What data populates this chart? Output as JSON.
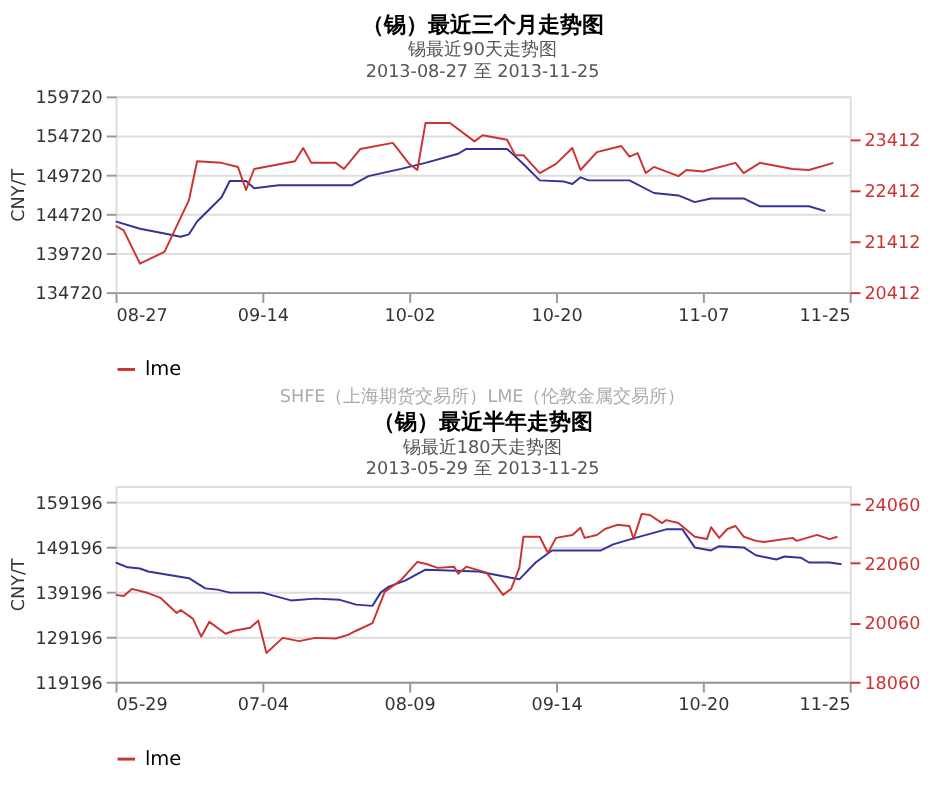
{
  "chart_data": [
    {
      "type": "line",
      "title": "（锡）最近三个月走势图",
      "subtitle": "锡最近90天走势图\n2013-08-27 至 2013-11-25",
      "ylabel": "CNY/T",
      "legend": "bottom",
      "grid": "y",
      "annotations": [
        "SHFE（上海期货交易所）LME（伦敦金属交易所）"
      ],
      "xlim": [
        "2013-08-27",
        "2013-11-25"
      ],
      "xticks": [
        {
          "value": "2013-08-27",
          "label": "08-27"
        },
        {
          "value": "2013-09-14",
          "label": "09-14"
        },
        {
          "value": "2013-10-02",
          "label": "10-02"
        },
        {
          "value": "2013-10-20",
          "label": "10-20"
        },
        {
          "value": "2013-11-07",
          "label": "11-07"
        },
        {
          "value": "2013-11-25",
          "label": "11-25"
        }
      ],
      "ylim": [
        134720,
        159720
      ],
      "yticks": [
        134720,
        139720,
        144720,
        149720,
        154720,
        159720
      ],
      "y2lim": [
        20412,
        24240
      ],
      "y2ticks": [
        20412,
        21412,
        22412,
        23412
      ],
      "series": [
        {
          "color": "#333399",
          "x": [
            "2013-08-27",
            "2013-08-30",
            "2013-09-02",
            "2013-09-04",
            "2013-09-05",
            "2013-09-06",
            "2013-09-09",
            "2013-09-10",
            "2013-09-12",
            "2013-09-13",
            "2013-09-16",
            "2013-09-25",
            "2013-09-27",
            "2013-10-01",
            "2013-10-04",
            "2013-10-08",
            "2013-10-09",
            "2013-10-14",
            "2013-10-16",
            "2013-10-18",
            "2013-10-21",
            "2013-10-22",
            "2013-10-23",
            "2013-10-24",
            "2013-10-29",
            "2013-11-01",
            "2013-11-04",
            "2013-11-06",
            "2013-11-08",
            "2013-11-12",
            "2013-11-14",
            "2013-11-20",
            "2013-11-22"
          ],
          "values": [
            143750,
            142820,
            142200,
            141800,
            142100,
            143750,
            146830,
            148920,
            148920,
            147990,
            148380,
            148380,
            149540,
            150460,
            151230,
            152390,
            153010,
            153010,
            151080,
            148990,
            148840,
            148530,
            149380,
            148990,
            148990,
            147380,
            147070,
            146220,
            146680,
            146680,
            145680,
            145680,
            145060
          ]
        },
        {
          "name": "lme",
          "color": "#cc3333",
          "axis": "y2",
          "x": [
            "2013-08-27",
            "2013-08-28",
            "2013-08-30",
            "2013-09-02",
            "2013-09-05",
            "2013-09-06",
            "2013-09-09",
            "2013-09-11",
            "2013-09-12",
            "2013-09-13",
            "2013-09-18",
            "2013-09-19",
            "2013-09-20",
            "2013-09-23",
            "2013-09-24",
            "2013-09-26",
            "2013-09-30",
            "2013-10-02",
            "2013-10-03",
            "2013-10-04",
            "2013-10-07",
            "2013-10-10",
            "2013-10-11",
            "2013-10-14",
            "2013-10-15",
            "2013-10-16",
            "2013-10-18",
            "2013-10-20",
            "2013-10-22",
            "2013-10-23",
            "2013-10-25",
            "2013-10-28",
            "2013-10-29",
            "2013-10-30",
            "2013-10-31",
            "2013-11-01",
            "2013-11-04",
            "2013-11-05",
            "2013-11-07",
            "2013-11-11",
            "2013-11-12",
            "2013-11-14",
            "2013-11-18",
            "2013-11-20",
            "2013-11-23"
          ],
          "values": [
            21710,
            21620,
            20970,
            21200,
            22210,
            22970,
            22940,
            22860,
            22410,
            22820,
            22970,
            23230,
            22940,
            22940,
            22820,
            23210,
            23330,
            22920,
            22800,
            23720,
            23720,
            23360,
            23480,
            23390,
            23090,
            23090,
            22740,
            22920,
            23230,
            22800,
            23150,
            23270,
            23060,
            23130,
            22740,
            22860,
            22680,
            22800,
            22770,
            22940,
            22740,
            22940,
            22820,
            22800,
            22940
          ]
        }
      ]
    },
    {
      "type": "line",
      "title": "（锡）最近半年走势图",
      "subtitle": "锡最近180天走势图\n2013-05-29 至 2013-11-25",
      "ylabel": "CNY/T",
      "legend": "bottom",
      "grid": "y",
      "xlim": [
        "2013-05-29",
        "2013-11-25"
      ],
      "xticks": [
        {
          "value": "2013-05-29",
          "label": "05-29"
        },
        {
          "value": "2013-07-04",
          "label": "07-04"
        },
        {
          "value": "2013-08-09",
          "label": "08-09"
        },
        {
          "value": "2013-09-14",
          "label": "09-14"
        },
        {
          "value": "2013-10-20",
          "label": "10-20"
        },
        {
          "value": "2013-11-25",
          "label": "11-25"
        }
      ],
      "ylim": [
        119196,
        162820
      ],
      "yticks": [
        119196,
        129196,
        139196,
        149196,
        159196
      ],
      "y2lim": [
        18060,
        24660
      ],
      "y2ticks": [
        18060,
        20060,
        22060,
        24060
      ],
      "series": [
        {
          "color": "#333399",
          "x": [
            "2013-05-29",
            "2013-06-01",
            "2013-06-04",
            "2013-06-06",
            "2013-06-13",
            "2013-06-16",
            "2013-06-20",
            "2013-06-23",
            "2013-06-26",
            "2013-07-04",
            "2013-07-11",
            "2013-07-17",
            "2013-07-23",
            "2013-07-27",
            "2013-07-31",
            "2013-08-02",
            "2013-08-04",
            "2013-08-08",
            "2013-08-13",
            "2013-08-26",
            "2013-09-01",
            "2013-09-05",
            "2013-09-09",
            "2013-09-13",
            "2013-09-20",
            "2013-09-25",
            "2013-09-28",
            "2013-10-03",
            "2013-10-11",
            "2013-10-15",
            "2013-10-18",
            "2013-10-22",
            "2013-10-24",
            "2013-10-30",
            "2013-11-02",
            "2013-11-07",
            "2013-11-09",
            "2013-11-13",
            "2013-11-15",
            "2013-11-20",
            "2013-11-23"
          ],
          "values": [
            145770,
            144700,
            144430,
            143760,
            142690,
            142280,
            140000,
            139730,
            139060,
            139060,
            137320,
            137720,
            137450,
            136380,
            136110,
            139060,
            140400,
            141750,
            144160,
            143760,
            142690,
            142020,
            145770,
            148460,
            148460,
            148460,
            149800,
            151140,
            153160,
            153160,
            149130,
            148460,
            149400,
            149130,
            147380,
            146440,
            147110,
            146850,
            145770,
            145770,
            145370
          ]
        },
        {
          "name": "lme",
          "color": "#cc3333",
          "axis": "y2",
          "x": [
            "2013-05-29",
            "2013-05-31",
            "2013-06-02",
            "2013-06-06",
            "2013-06-09",
            "2013-06-13",
            "2013-06-14",
            "2013-06-17",
            "2013-06-19",
            "2013-06-21",
            "2013-06-25",
            "2013-06-27",
            "2013-07-01",
            "2013-07-03",
            "2013-07-05",
            "2013-07-09",
            "2013-07-13",
            "2013-07-17",
            "2013-07-22",
            "2013-07-25",
            "2013-07-27",
            "2013-07-31",
            "2013-08-03",
            "2013-08-07",
            "2013-08-11",
            "2013-08-13",
            "2013-08-16",
            "2013-08-20",
            "2013-08-21",
            "2013-08-23",
            "2013-08-28",
            "2013-09-01",
            "2013-09-03",
            "2013-09-05",
            "2013-09-06",
            "2013-09-10",
            "2013-09-12",
            "2013-09-14",
            "2013-09-18",
            "2013-09-20",
            "2013-09-21",
            "2013-09-24",
            "2013-09-26",
            "2013-09-29",
            "2013-10-02",
            "2013-10-03",
            "2013-10-05",
            "2013-10-07",
            "2013-10-10",
            "2013-10-11",
            "2013-10-14",
            "2013-10-18",
            "2013-10-21",
            "2013-10-22",
            "2013-10-24",
            "2013-10-26",
            "2013-10-28",
            "2013-10-30",
            "2013-11-02",
            "2013-11-04",
            "2013-11-11",
            "2013-11-12",
            "2013-11-17",
            "2013-11-20",
            "2013-11-22"
          ],
          "values": [
            20990,
            20950,
            21190,
            21050,
            20890,
            20380,
            20480,
            20180,
            19580,
            20080,
            19680,
            19780,
            19880,
            20120,
            19030,
            19540,
            19430,
            19540,
            19520,
            19640,
            19780,
            20040,
            21090,
            21490,
            22100,
            22040,
            21900,
            21940,
            21700,
            21940,
            21740,
            20990,
            21190,
            21900,
            22950,
            22950,
            22400,
            22910,
            23010,
            23250,
            22910,
            23010,
            23210,
            23350,
            23310,
            22870,
            23720,
            23680,
            23410,
            23510,
            23410,
            22950,
            22870,
            23270,
            22910,
            23210,
            23310,
            22950,
            22810,
            22770,
            22910,
            22810,
            23010,
            22870,
            22950
          ]
        }
      ]
    }
  ]
}
